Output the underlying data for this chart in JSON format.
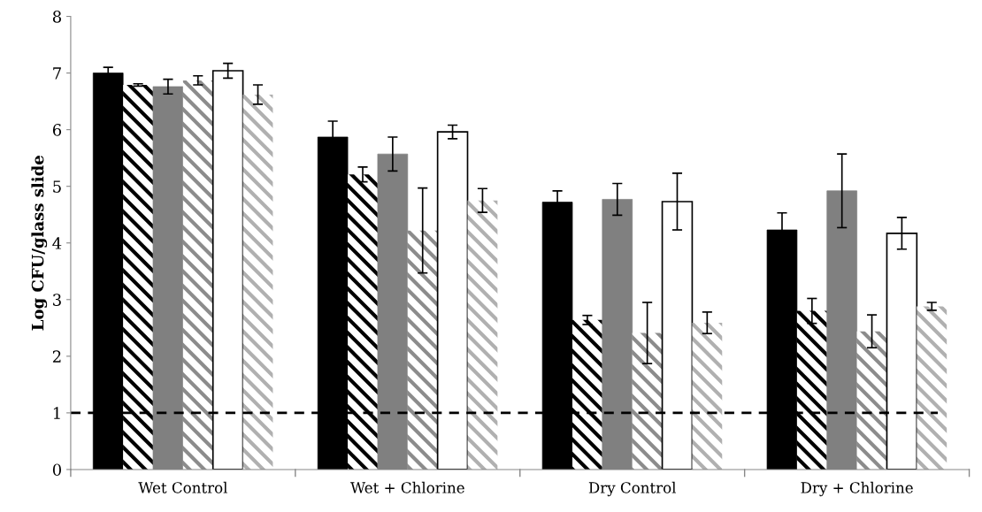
{
  "chart_data": {
    "type": "bar",
    "ylabel": "Log CFU/glass slide",
    "categories": [
      "Wet Control",
      "Wet + Chlorine",
      "Dry Control",
      "Dry + Chlorine"
    ],
    "series": [
      {
        "color": "#000000",
        "values": [
          7.0,
          5.87,
          4.72,
          4.23
        ],
        "errors": [
          0.1,
          0.28,
          0.2,
          0.3
        ]
      },
      {
        "color": "#000000",
        "values": [
          6.79,
          5.21,
          2.64,
          2.8
        ],
        "errors": [
          0.02,
          0.13,
          0.08,
          0.22
        ]
      },
      {
        "color": "#808080",
        "values": [
          6.76,
          5.57,
          4.77,
          4.92
        ],
        "errors": [
          0.13,
          0.3,
          0.28,
          0.65
        ]
      },
      {
        "color": "#8c8c8c",
        "values": [
          6.87,
          4.22,
          2.41,
          2.44
        ],
        "errors": [
          0.08,
          0.75,
          0.54,
          0.29
        ]
      },
      {
        "color": "#ffffff",
        "values": [
          7.04,
          5.96,
          4.73,
          4.17
        ],
        "errors": [
          0.13,
          0.12,
          0.5,
          0.28
        ]
      },
      {
        "color": "#b0b0b0",
        "values": [
          6.62,
          4.75,
          2.59,
          2.88
        ],
        "errors": [
          0.17,
          0.21,
          0.19,
          0.07
        ]
      }
    ],
    "ylim": [
      0,
      8
    ],
    "yticks": [
      0,
      1,
      2,
      3,
      4,
      5,
      6,
      7,
      8
    ],
    "ref_lines": [
      {
        "axis": "y",
        "value": 1,
        "color": "#000000",
        "line_style": "dashed"
      }
    ],
    "grid": false,
    "legend": false
  }
}
